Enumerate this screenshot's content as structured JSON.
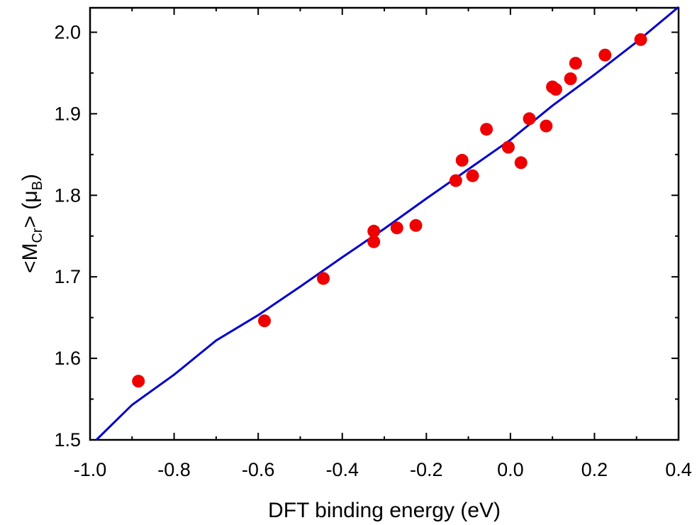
{
  "chart_data": {
    "type": "scatter",
    "title": "",
    "xlabel": "DFT binding energy (eV)",
    "ylabel": {
      "prefix": "<M",
      "sub1": "Cr",
      "middle": "> (μ",
      "sub2": "B",
      "suffix": ")"
    },
    "xlim": [
      -1.0,
      0.4
    ],
    "ylim": [
      1.5,
      2.03
    ],
    "xticks": [
      "-1.0",
      "-0.8",
      "-0.6",
      "-0.4",
      "-0.2",
      "0.0",
      "0.2",
      "0.4"
    ],
    "xtick_values": [
      -1.0,
      -0.8,
      -0.6,
      -0.4,
      -0.2,
      0.0,
      0.2,
      0.4
    ],
    "yticks": [
      "1.5",
      "1.6",
      "1.7",
      "1.8",
      "1.9",
      "2.0"
    ],
    "ytick_values": [
      1.5,
      1.6,
      1.7,
      1.8,
      1.9,
      2.0
    ],
    "grid": false,
    "series": [
      {
        "kind": "scatter",
        "color": "#ee0000",
        "points": [
          [
            -0.885,
            1.572
          ],
          [
            -0.585,
            1.646
          ],
          [
            -0.445,
            1.698
          ],
          [
            -0.325,
            1.756
          ],
          [
            -0.325,
            1.743
          ],
          [
            -0.27,
            1.76
          ],
          [
            -0.225,
            1.763
          ],
          [
            -0.13,
            1.818
          ],
          [
            -0.115,
            1.843
          ],
          [
            -0.09,
            1.824
          ],
          [
            -0.057,
            1.881
          ],
          [
            -0.005,
            1.859
          ],
          [
            0.025,
            1.84
          ],
          [
            0.045,
            1.894
          ],
          [
            0.085,
            1.885
          ],
          [
            0.1,
            1.933
          ],
          [
            0.108,
            1.93
          ],
          [
            0.143,
            1.943
          ],
          [
            0.155,
            1.962
          ],
          [
            0.225,
            1.972
          ],
          [
            0.31,
            1.991
          ]
        ]
      },
      {
        "kind": "line",
        "color": "#0000cc",
        "points": [
          [
            -0.985,
            1.5
          ],
          [
            -0.9,
            1.543
          ],
          [
            -0.8,
            1.58
          ],
          [
            -0.7,
            1.622
          ],
          [
            -0.6,
            1.653
          ],
          [
            -0.5,
            1.688
          ],
          [
            -0.4,
            1.724
          ],
          [
            -0.3,
            1.759
          ],
          [
            -0.2,
            1.796
          ],
          [
            -0.1,
            1.832
          ],
          [
            0.0,
            1.868
          ],
          [
            0.1,
            1.91
          ],
          [
            0.2,
            1.948
          ],
          [
            0.3,
            1.988
          ],
          [
            0.4,
            2.031
          ]
        ]
      }
    ]
  }
}
